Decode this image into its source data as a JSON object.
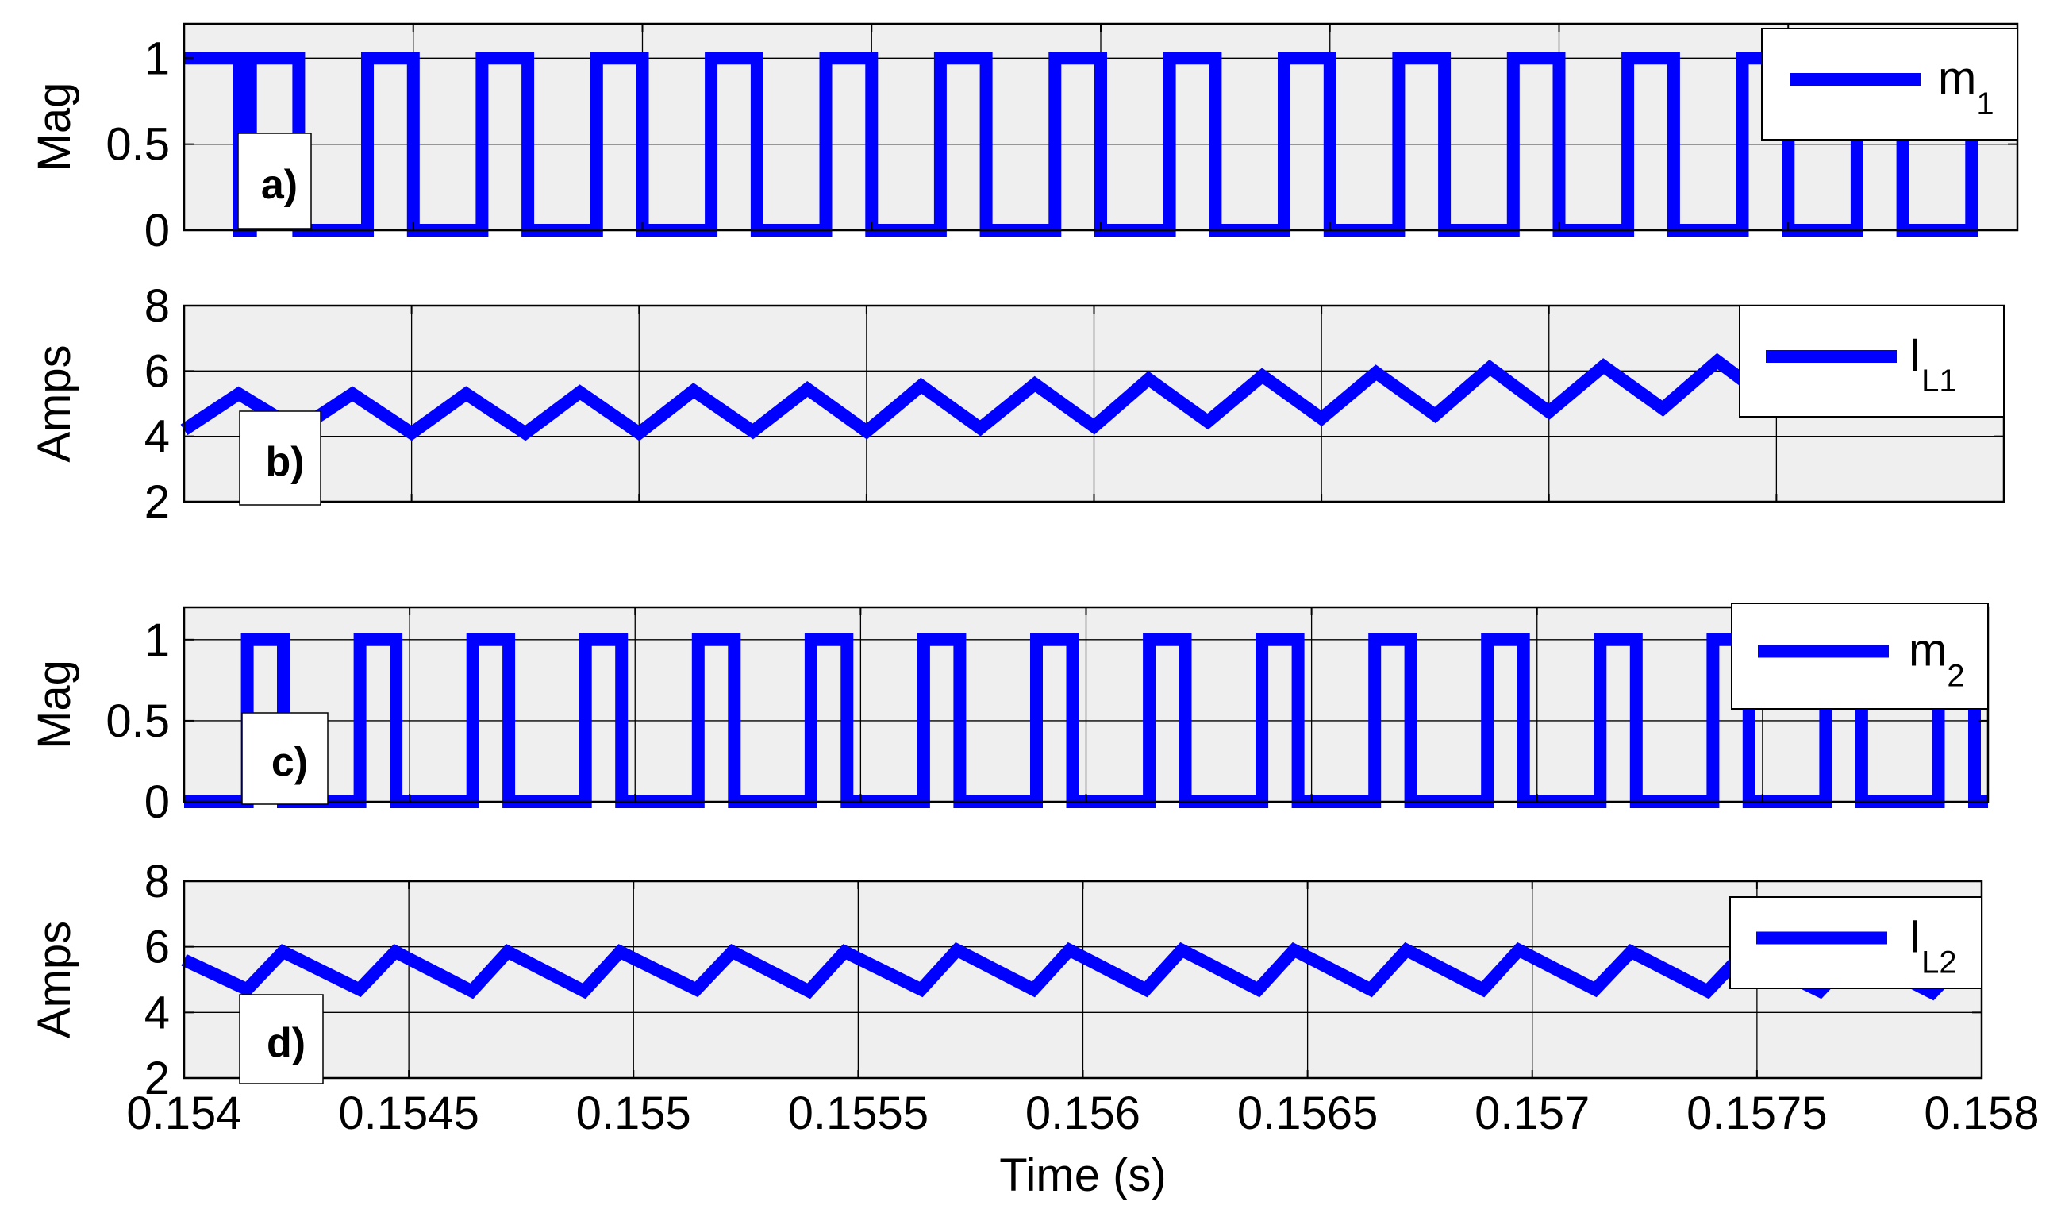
{
  "colors": {
    "series": "#0000ff",
    "axes_bg": "#efefef",
    "grid": "#000000",
    "label_box": "#ffffff"
  },
  "xaxis": {
    "label": "Time (s)",
    "ticks": [
      "0.154",
      "0.1545",
      "0.155",
      "0.1555",
      "0.156",
      "0.1565",
      "0.157",
      "0.1575",
      "0.158"
    ]
  },
  "panels": [
    {
      "panel_label": "a)",
      "ylabel": "Mag",
      "legend": {
        "main": "m",
        "sub": "1"
      },
      "yticks": [
        "0",
        "0.5",
        "1"
      ]
    },
    {
      "panel_label": "b)",
      "ylabel": "Amps",
      "legend": {
        "main": "I",
        "sub": "L1"
      },
      "yticks": [
        "2",
        "4",
        "6",
        "8"
      ]
    },
    {
      "panel_label": "c)",
      "ylabel": "Mag",
      "legend": {
        "main": "m",
        "sub": "2"
      },
      "yticks": [
        "0",
        "0.5",
        "1"
      ]
    },
    {
      "panel_label": "d)",
      "ylabel": "Amps",
      "legend": {
        "main": "I",
        "sub": "L2"
      },
      "yticks": [
        "2",
        "4",
        "6",
        "8"
      ]
    }
  ],
  "chart_data": [
    {
      "type": "line",
      "xlabel": "Time (s)",
      "ylabel": "Mag",
      "xlim": [
        0.154,
        0.158
      ],
      "ylim": [
        0,
        1.2
      ],
      "grid": true,
      "legend_position": "top-right",
      "xticks": [
        0.154,
        0.1545,
        0.155,
        0.1555,
        0.156,
        0.1565,
        0.157,
        0.1575,
        0.158
      ],
      "yticks": [
        0,
        0.5,
        1
      ],
      "series": [
        {
          "name": "m1",
          "kind": "square",
          "x": [
            0.154,
            0.15412,
            0.15412,
            0.154145,
            0.154145,
            0.15425,
            0.15425,
            0.1544,
            0.1544,
            0.1545,
            0.1545,
            0.15465,
            0.15465,
            0.15475,
            0.15475,
            0.1549,
            0.1549,
            0.155,
            0.155,
            0.15515,
            0.15515,
            0.15525,
            0.15525,
            0.1554,
            0.1554,
            0.1555,
            0.1555,
            0.15565,
            0.15565,
            0.15575,
            0.15575,
            0.1559,
            0.1559,
            0.156,
            0.156,
            0.15615,
            0.15615,
            0.15625,
            0.15625,
            0.1564,
            0.1564,
            0.1565,
            0.1565,
            0.15665,
            0.15665,
            0.15675,
            0.15675,
            0.1569,
            0.1569,
            0.157,
            0.157,
            0.15715,
            0.15715,
            0.15725,
            0.15725,
            0.1574,
            0.1574,
            0.1575,
            0.1575,
            0.15765,
            0.15765,
            0.15775,
            0.15775,
            0.1579,
            0.1579,
            0.158
          ],
          "y": [
            1,
            1,
            0,
            0,
            1,
            1,
            0,
            0,
            1,
            1,
            0,
            0,
            1,
            1,
            0,
            0,
            1,
            1,
            0,
            0,
            1,
            1,
            0,
            0,
            1,
            1,
            0,
            0,
            1,
            1,
            0,
            0,
            1,
            1,
            0,
            0,
            1,
            1,
            0,
            0,
            1,
            1,
            0,
            0,
            1,
            1,
            0,
            0,
            1,
            1,
            0,
            0,
            1,
            1,
            0,
            0,
            1,
            1,
            0,
            0,
            1,
            1,
            0,
            0,
            1,
            1
          ]
        }
      ]
    },
    {
      "type": "line",
      "xlabel": "Time (s)",
      "ylabel": "Amps",
      "xlim": [
        0.154,
        0.158
      ],
      "ylim": [
        2,
        8
      ],
      "grid": true,
      "legend_position": "top-right",
      "xticks": [
        0.154,
        0.1545,
        0.155,
        0.1555,
        0.156,
        0.1565,
        0.157,
        0.1575,
        0.158
      ],
      "yticks": [
        2,
        4,
        6,
        8
      ],
      "series": [
        {
          "name": "IL1",
          "kind": "line",
          "x": [
            0.154,
            0.15412,
            0.15425,
            0.15437,
            0.1545,
            0.15462,
            0.15475,
            0.15487,
            0.155,
            0.15512,
            0.15525,
            0.15537,
            0.1555,
            0.15562,
            0.15575,
            0.15587,
            0.156,
            0.15612,
            0.15625,
            0.15637,
            0.1565,
            0.15662,
            0.15675,
            0.15687,
            0.157,
            0.15712,
            0.15725,
            0.15737,
            0.1575,
            0.15762
          ],
          "y": [
            4.2,
            5.3,
            4.2,
            5.3,
            4.1,
            5.3,
            4.1,
            5.35,
            4.1,
            5.4,
            4.15,
            5.45,
            4.15,
            5.55,
            4.25,
            5.6,
            4.3,
            5.75,
            4.45,
            5.85,
            4.55,
            5.95,
            4.65,
            6.1,
            4.75,
            6.15,
            4.85,
            6.3,
            4.95,
            6.35
          ]
        }
      ]
    },
    {
      "type": "line",
      "xlabel": "Time (s)",
      "ylabel": "Mag",
      "xlim": [
        0.154,
        0.158
      ],
      "ylim": [
        0,
        1.2
      ],
      "grid": true,
      "legend_position": "top-right",
      "xticks": [
        0.154,
        0.1545,
        0.155,
        0.1555,
        0.156,
        0.1565,
        0.157,
        0.1575,
        0.158
      ],
      "yticks": [
        0,
        0.5,
        1
      ],
      "series": [
        {
          "name": "m2",
          "kind": "square",
          "x": [
            0.154,
            0.15414,
            0.15414,
            0.15422,
            0.15422,
            0.15439,
            0.15439,
            0.15447,
            0.15447,
            0.15464,
            0.15464,
            0.15472,
            0.15472,
            0.15489,
            0.15489,
            0.15497,
            0.15497,
            0.15514,
            0.15514,
            0.15522,
            0.15522,
            0.15539,
            0.15539,
            0.15547,
            0.15547,
            0.15564,
            0.15564,
            0.15572,
            0.15572,
            0.15589,
            0.15589,
            0.15597,
            0.15597,
            0.15614,
            0.15614,
            0.15622,
            0.15622,
            0.15639,
            0.15639,
            0.15647,
            0.15647,
            0.15664,
            0.15664,
            0.15672,
            0.15672,
            0.15689,
            0.15689,
            0.15697,
            0.15697,
            0.15714,
            0.15714,
            0.15722,
            0.15722,
            0.15739,
            0.15739,
            0.15747,
            0.15747,
            0.15764,
            0.15764,
            0.15772,
            0.15772,
            0.15789,
            0.15789,
            0.15797,
            0.15797,
            0.158
          ],
          "y": [
            0,
            0,
            1,
            1,
            0,
            0,
            1,
            1,
            0,
            0,
            1,
            1,
            0,
            0,
            1,
            1,
            0,
            0,
            1,
            1,
            0,
            0,
            1,
            1,
            0,
            0,
            1,
            1,
            0,
            0,
            1,
            1,
            0,
            0,
            1,
            1,
            0,
            0,
            1,
            1,
            0,
            0,
            1,
            1,
            0,
            0,
            1,
            1,
            0,
            0,
            1,
            1,
            0,
            0,
            1,
            1,
            0,
            0,
            1,
            1,
            0,
            0,
            1,
            1,
            0,
            0
          ]
        }
      ]
    },
    {
      "type": "line",
      "xlabel": "Time (s)",
      "ylabel": "Amps",
      "xlim": [
        0.154,
        0.158
      ],
      "ylim": [
        2,
        8
      ],
      "grid": true,
      "legend_position": "top-right",
      "xticks": [
        0.154,
        0.1545,
        0.155,
        0.1555,
        0.156,
        0.1565,
        0.157,
        0.1575,
        0.158
      ],
      "yticks": [
        2,
        4,
        6,
        8
      ],
      "series": [
        {
          "name": "IL2",
          "kind": "line",
          "x": [
            0.154,
            0.15414,
            0.15422,
            0.15439,
            0.15447,
            0.15464,
            0.15472,
            0.15489,
            0.15497,
            0.15514,
            0.15522,
            0.15539,
            0.15547,
            0.15564,
            0.15572,
            0.15589,
            0.15597,
            0.15614,
            0.15622,
            0.15639,
            0.15647,
            0.15664,
            0.15672,
            0.15689,
            0.15697,
            0.15714,
            0.15722,
            0.15739,
            0.15747,
            0.15764,
            0.15772,
            0.15789,
            0.15797
          ],
          "y": [
            5.6,
            4.7,
            5.85,
            4.7,
            5.85,
            4.65,
            5.85,
            4.65,
            5.85,
            4.7,
            5.85,
            4.65,
            5.85,
            4.7,
            5.9,
            4.7,
            5.9,
            4.7,
            5.9,
            4.7,
            5.9,
            4.7,
            5.9,
            4.7,
            5.9,
            4.7,
            5.85,
            4.65,
            5.8,
            4.65,
            5.8,
            4.6,
            5.75
          ]
        }
      ]
    }
  ]
}
